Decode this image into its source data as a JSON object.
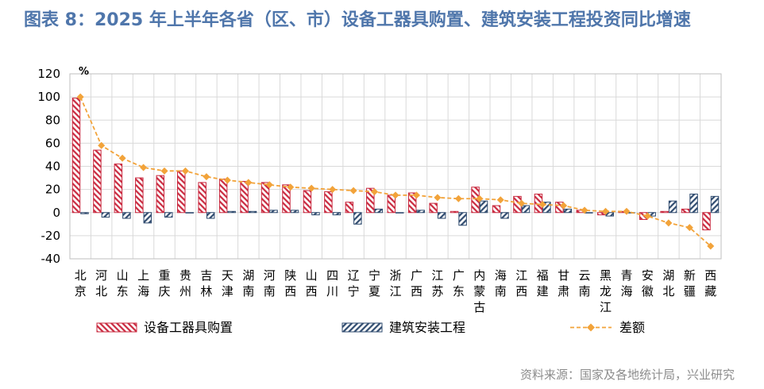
{
  "chart_data": {
    "type": "bar",
    "title": "图表 8：2025 年上半年各省（区、市）设备工器具购置、建筑安装工程投资同比增速",
    "unit": "%",
    "categories": [
      "北京",
      "河北",
      "山东",
      "上海",
      "重庆",
      "贵州",
      "吉林",
      "天津",
      "湖南",
      "河南",
      "陕西",
      "山西",
      "四川",
      "辽宁",
      "宁夏",
      "浙江",
      "广西",
      "江苏",
      "广东",
      "内蒙古",
      "海南",
      "江西",
      "福建",
      "甘肃",
      "云南",
      "黑龙江",
      "青海",
      "安徽",
      "湖北",
      "新疆",
      "西藏"
    ],
    "series": [
      {
        "name": "设备工器具购置",
        "type": "bar",
        "color": "#C9283E",
        "values": [
          99,
          54,
          42,
          30,
          32,
          36,
          26,
          29,
          27,
          26,
          24,
          19,
          18,
          9,
          21,
          15,
          17,
          8,
          1,
          22,
          6,
          14,
          16,
          9,
          2,
          -2,
          1,
          -6,
          1,
          3,
          -15
        ]
      },
      {
        "name": "建筑安装工程",
        "type": "bar",
        "color": "#2E4A6E",
        "values": [
          -1,
          -4,
          -5,
          -9,
          -4,
          0,
          -5,
          1,
          1,
          2,
          2,
          -2,
          -2,
          -10,
          3,
          0,
          2,
          -5,
          -11,
          10,
          -5,
          6,
          9,
          3,
          0,
          -3,
          0,
          -3,
          10,
          16,
          14
        ]
      },
      {
        "name": "差额",
        "type": "line",
        "color": "#F2A33A",
        "values": [
          100,
          58,
          47,
          39,
          36,
          36,
          31,
          28,
          26,
          24,
          22,
          21,
          20,
          19,
          18,
          15,
          15,
          13,
          12,
          12,
          11,
          8,
          7,
          6,
          2,
          1,
          1,
          -3,
          -9,
          -13,
          -29
        ]
      }
    ],
    "ylim": [
      -40,
      120
    ],
    "yticks": [
      -40,
      -20,
      0,
      20,
      40,
      60,
      80,
      100,
      120
    ],
    "grid": true,
    "legend": "bottom"
  },
  "source": "资料来源：国家及各地统计局，兴业研究"
}
